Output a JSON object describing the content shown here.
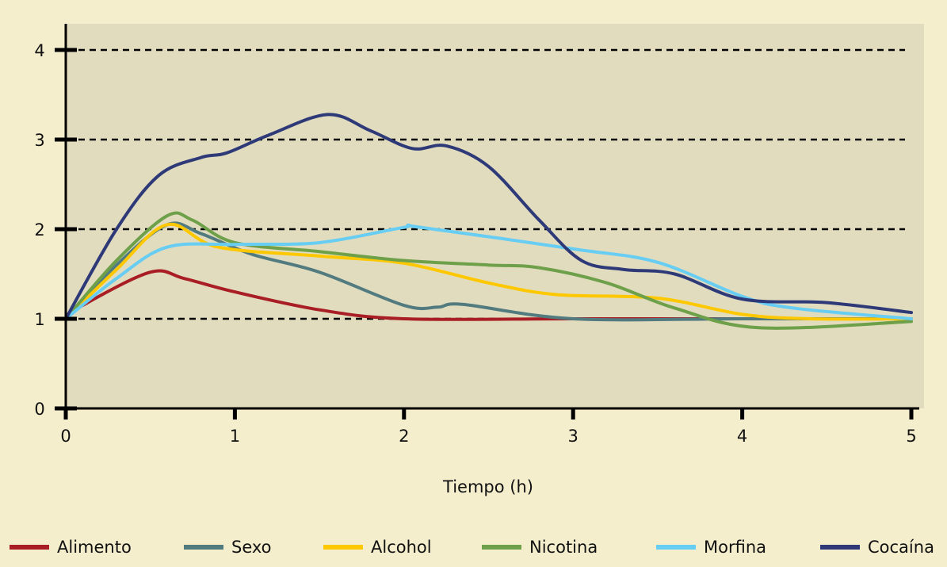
{
  "chart_data": {
    "type": "line",
    "title": "",
    "xlabel": "Tiempo (h)",
    "ylabel": "",
    "xlim": [
      0,
      5
    ],
    "ylim": [
      0,
      4.3
    ],
    "xticks": [
      "0",
      "1",
      "2",
      "3",
      "4",
      "5"
    ],
    "yticks": [
      "0",
      "1",
      "2",
      "3",
      "4"
    ],
    "grid": "dashed horizontal at 1,2,3,4",
    "legend_position": "bottom",
    "colors": {
      "plot_bg": "#e2dcbf",
      "page_bg": "#f5eecd"
    },
    "series": [
      {
        "name": "Alimento",
        "color": "#a81e24",
        "points": [
          [
            0,
            1
          ],
          [
            0.1,
            1.15
          ],
          [
            0.5,
            1.52
          ],
          [
            0.7,
            1.45
          ],
          [
            1,
            1.3
          ],
          [
            1.5,
            1.1
          ],
          [
            2,
            1
          ],
          [
            3,
            1
          ],
          [
            4,
            1
          ],
          [
            5,
            1
          ]
        ]
      },
      {
        "name": "Sexo",
        "color": "#527b80",
        "points": [
          [
            0,
            1
          ],
          [
            0.3,
            1.6
          ],
          [
            0.6,
            2.05
          ],
          [
            0.8,
            1.95
          ],
          [
            1.1,
            1.72
          ],
          [
            1.5,
            1.52
          ],
          [
            2,
            1.15
          ],
          [
            2.2,
            1.13
          ],
          [
            2.35,
            1.16
          ],
          [
            3,
            1
          ],
          [
            4,
            1
          ],
          [
            5,
            1
          ]
        ]
      },
      {
        "name": "Alcohol",
        "color": "#fdc800",
        "points": [
          [
            0,
            1
          ],
          [
            0.3,
            1.55
          ],
          [
            0.6,
            2.05
          ],
          [
            0.9,
            1.8
          ],
          [
            1.5,
            1.7
          ],
          [
            2,
            1.62
          ],
          [
            2.5,
            1.4
          ],
          [
            2.9,
            1.27
          ],
          [
            3.5,
            1.23
          ],
          [
            4,
            1.05
          ],
          [
            4.4,
            1
          ],
          [
            5,
            1
          ]
        ]
      },
      {
        "name": "Nicotina",
        "color": "#6ea04a",
        "points": [
          [
            0,
            1
          ],
          [
            0.3,
            1.65
          ],
          [
            0.6,
            2.15
          ],
          [
            0.75,
            2.1
          ],
          [
            1,
            1.85
          ],
          [
            1.5,
            1.75
          ],
          [
            2,
            1.65
          ],
          [
            2.5,
            1.6
          ],
          [
            2.8,
            1.57
          ],
          [
            3.2,
            1.4
          ],
          [
            3.6,
            1.12
          ],
          [
            4.1,
            0.9
          ],
          [
            5,
            0.97
          ]
        ]
      },
      {
        "name": "Morfina",
        "color": "#67cdf2",
        "points": [
          [
            0,
            1
          ],
          [
            0.3,
            1.45
          ],
          [
            0.6,
            1.8
          ],
          [
            1,
            1.83
          ],
          [
            1.5,
            1.85
          ],
          [
            2,
            2.02
          ],
          [
            2.1,
            2.02
          ],
          [
            3,
            1.78
          ],
          [
            3.5,
            1.63
          ],
          [
            4,
            1.25
          ],
          [
            4.3,
            1.12
          ],
          [
            5,
            1
          ]
        ]
      },
      {
        "name": "Cocaína",
        "color": "#2e3a78",
        "points": [
          [
            0,
            1
          ],
          [
            0.3,
            2
          ],
          [
            0.55,
            2.6
          ],
          [
            0.8,
            2.8
          ],
          [
            0.95,
            2.85
          ],
          [
            1.2,
            3.05
          ],
          [
            1.55,
            3.28
          ],
          [
            1.8,
            3.1
          ],
          [
            2.05,
            2.9
          ],
          [
            2.25,
            2.93
          ],
          [
            2.5,
            2.7
          ],
          [
            2.8,
            2.1
          ],
          [
            3.05,
            1.65
          ],
          [
            3.3,
            1.55
          ],
          [
            3.6,
            1.5
          ],
          [
            4,
            1.22
          ],
          [
            4.5,
            1.18
          ],
          [
            5,
            1.07
          ]
        ]
      }
    ]
  }
}
